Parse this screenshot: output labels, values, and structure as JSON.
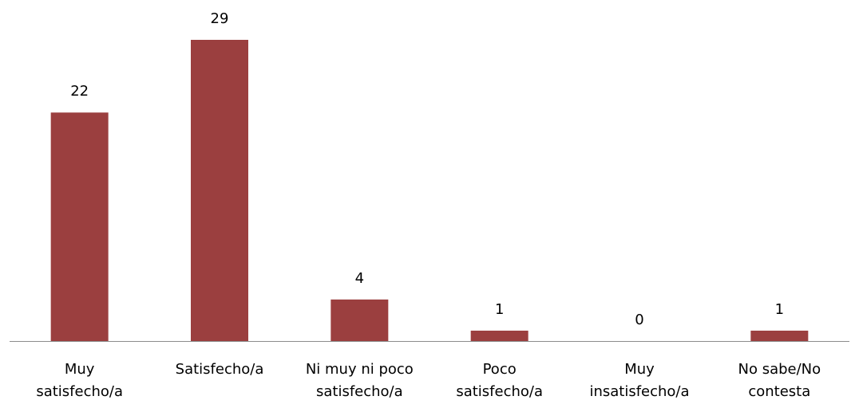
{
  "chart_data": {
    "type": "bar",
    "categories": [
      [
        "Muy",
        "satisfecho/a"
      ],
      [
        "Satisfecho/a"
      ],
      [
        "Ni muy ni poco",
        "satisfecho/a"
      ],
      [
        "Poco",
        "satisfecho/a"
      ],
      [
        "Muy",
        "insatisfecho/a"
      ],
      [
        "No sabe/No",
        "contesta"
      ]
    ],
    "values": [
      22,
      29,
      4,
      1,
      0,
      1
    ],
    "ylim": [
      0,
      29
    ],
    "grid": false,
    "legend": "none",
    "bar_color": "#9B3F3F",
    "axis_color": "#8C8C8C"
  }
}
